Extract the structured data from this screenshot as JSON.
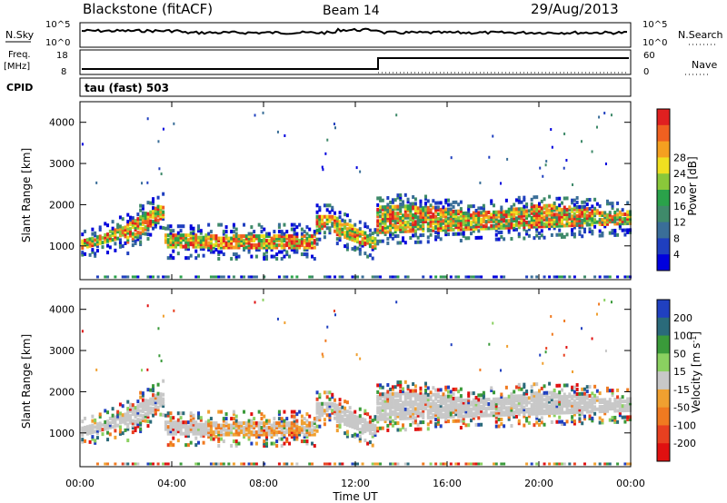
{
  "header": {
    "station": "Blackstone (fitACF)",
    "beam": "Beam 14",
    "date": "29/Aug/2013"
  },
  "status_panels": {
    "nsky_label": "N.Sky",
    "nsearch_label": "N.Search",
    "freq_label_line1": "Freq.",
    "freq_label_line2": "[MHz]",
    "nave_label": "Nave",
    "cpid_label": "CPID",
    "cpid_text": "tau (fast) 503",
    "nsky_ticks": [
      "10^5",
      "10^0"
    ],
    "nsearch_ticks": [
      "10^5",
      "10^0"
    ],
    "freq_ticks": [
      "18",
      "8"
    ],
    "nave_ticks": [
      "60",
      "0"
    ]
  },
  "chart_data": [
    {
      "type": "heatmap",
      "name": "power",
      "ylabel": "Slant Range [km]",
      "xlabel": "Time UT",
      "x_ticks": [
        "00:00",
        "04:00",
        "08:00",
        "12:00",
        "16:00",
        "20:00",
        "00:00"
      ],
      "x_range_hours": [
        0,
        24
      ],
      "y_ticks": [
        1000,
        2000,
        3000,
        4000
      ],
      "ylim": [
        180,
        4500
      ],
      "colorbar": {
        "label": "Power [dB]",
        "ticks": [
          4,
          8,
          12,
          16,
          20,
          24,
          28
        ],
        "colors": [
          "#0000dd",
          "#1f3fbf",
          "#3a6e98",
          "#3f8a6a",
          "#2aa24a",
          "#8ac83a",
          "#f0e020",
          "#f5a020",
          "#f06020",
          "#e02020"
        ]
      },
      "features": [
        {
          "desc": "band",
          "t": [
            0.0,
            2.0
          ],
          "r": [
            960,
            1100
          ],
          "level": "high"
        },
        {
          "desc": "band",
          "t": [
            5.5,
            10.0
          ],
          "r": [
            1000,
            1300
          ],
          "level": "high"
        },
        {
          "desc": "band",
          "t": [
            13.0,
            24.0
          ],
          "r": [
            1500,
            1900
          ],
          "level": "mid-high"
        }
      ]
    },
    {
      "type": "heatmap",
      "name": "velocity",
      "ylabel": "Slant Range [km]",
      "xlabel": "Time UT",
      "x_ticks": [
        "00:00",
        "04:00",
        "08:00",
        "12:00",
        "16:00",
        "20:00",
        "00:00"
      ],
      "x_range_hours": [
        0,
        24
      ],
      "y_ticks": [
        1000,
        2000,
        3000,
        4000
      ],
      "ylim": [
        180,
        4500
      ],
      "colorbar": {
        "label": "Velocity [m s^-1]",
        "ticks": [
          200,
          100,
          50,
          15,
          -15,
          -50,
          -100,
          -200
        ],
        "colors": [
          "#2040c0",
          "#2a6a7a",
          "#3a9a3a",
          "#8ad060",
          "#c8c8c8",
          "#f0a030",
          "#f07a20",
          "#e84020",
          "#e01010"
        ]
      }
    }
  ]
}
